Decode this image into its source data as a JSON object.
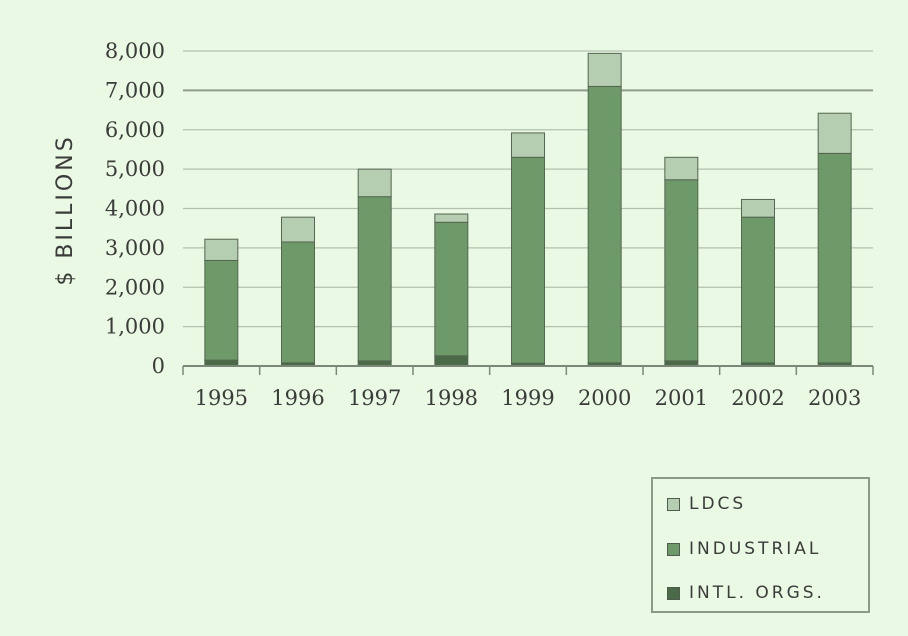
{
  "chart_data": {
    "type": "bar",
    "stacked": true,
    "ylabel": "$ BILLIONS",
    "ylim": [
      0,
      8000
    ],
    "yticks": [
      "0",
      "1,000",
      "2,000",
      "3,000",
      "4,000",
      "5,000",
      "6,000",
      "7,000",
      "8,000"
    ],
    "ytick_values": [
      0,
      1000,
      2000,
      3000,
      4000,
      5000,
      6000,
      7000,
      8000
    ],
    "categories": [
      "1995",
      "1996",
      "1997",
      "1998",
      "1999",
      "2000",
      "2001",
      "2002",
      "2003"
    ],
    "series": [
      {
        "name": "INTL. ORGS.",
        "color": "#4a6a48",
        "values": [
          150,
          80,
          130,
          260,
          70,
          80,
          130,
          80,
          80
        ]
      },
      {
        "name": "INDUSTRIAL",
        "color": "#6e9a6a",
        "values": [
          2530,
          3070,
          4170,
          3390,
          5230,
          7020,
          4600,
          3700,
          5320
        ]
      },
      {
        "name": "LDCS",
        "color": "#b5cdb0",
        "values": [
          540,
          630,
          700,
          210,
          620,
          840,
          570,
          450,
          1020
        ]
      }
    ],
    "grid": true,
    "legend_position": "bottom-right"
  },
  "legend": {
    "items": [
      {
        "label": "LDCS",
        "color": "#b5cdb0"
      },
      {
        "label": "INDUSTRIAL",
        "color": "#6e9a6a"
      },
      {
        "label": "INTL. ORGS.",
        "color": "#4a6a48"
      }
    ]
  }
}
